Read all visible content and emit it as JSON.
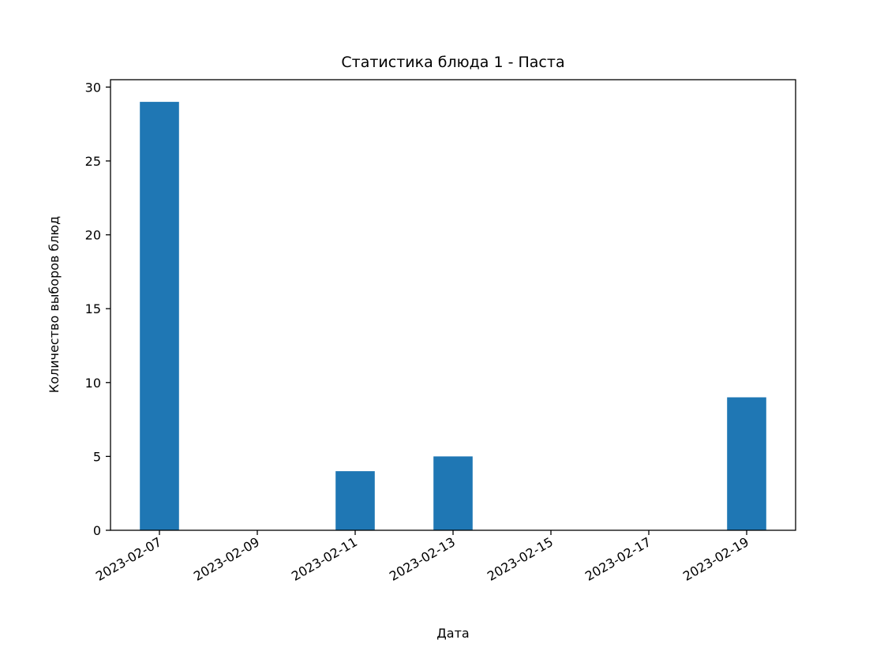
{
  "chart_data": {
    "type": "bar",
    "title": "Статистика блюда 1 - Паста",
    "xlabel": "Дата",
    "ylabel": "Количество выборов блюд",
    "x_axis_type": "date",
    "x_tick_labels": [
      "2023-02-07",
      "2023-02-09",
      "2023-02-11",
      "2023-02-13",
      "2023-02-15",
      "2023-02-17",
      "2023-02-19"
    ],
    "y_ticks": [
      0,
      5,
      10,
      15,
      20,
      25,
      30
    ],
    "ylim": [
      0,
      30.5
    ],
    "xlim": [
      "2023-02-06",
      "2023-02-20"
    ],
    "bar_color": "#1f77b4",
    "points": [
      {
        "date": "2023-02-07",
        "value": 29
      },
      {
        "date": "2023-02-11",
        "value": 4
      },
      {
        "date": "2023-02-13",
        "value": 5
      },
      {
        "date": "2023-02-19",
        "value": 9
      }
    ],
    "grid": false,
    "legend": "none"
  }
}
